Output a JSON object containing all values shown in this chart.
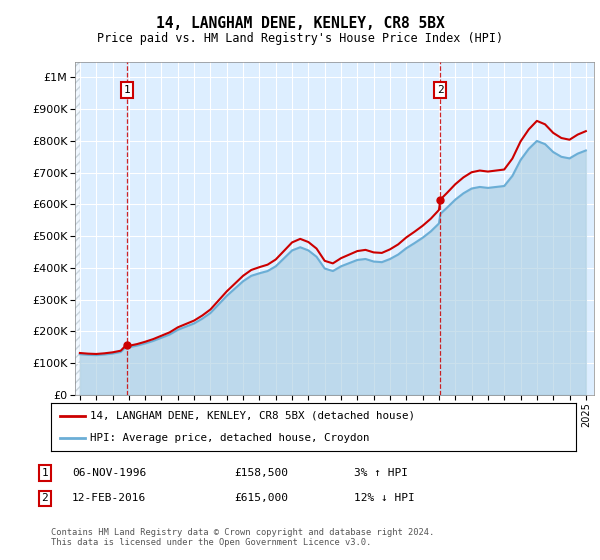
{
  "title": "14, LANGHAM DENE, KENLEY, CR8 5BX",
  "subtitle": "Price paid vs. HM Land Registry's House Price Index (HPI)",
  "ylim": [
    0,
    1050000
  ],
  "yticks": [
    0,
    100000,
    200000,
    300000,
    400000,
    500000,
    600000,
    700000,
    800000,
    900000,
    1000000
  ],
  "ytick_labels": [
    "£0",
    "£100K",
    "£200K",
    "£300K",
    "£400K",
    "£500K",
    "£600K",
    "£700K",
    "£800K",
    "£900K",
    "£1M"
  ],
  "hpi_color": "#a8cce0",
  "hpi_line_color": "#6baed6",
  "price_color": "#cc0000",
  "bg_color": "#ddeeff",
  "transaction1_year": 1996.875,
  "transaction1_price": 158500,
  "transaction2_year": 2016.083,
  "transaction2_price": 615000,
  "legend_line1": "14, LANGHAM DENE, KENLEY, CR8 5BX (detached house)",
  "legend_line2": "HPI: Average price, detached house, Croydon",
  "footer": "Contains HM Land Registry data © Crown copyright and database right 2024.\nThis data is licensed under the Open Government Licence v3.0.",
  "hpi_years": [
    1994.0,
    1994.5,
    1995.0,
    1995.5,
    1996.0,
    1996.5,
    1996.875,
    1997.0,
    1997.5,
    1998.0,
    1998.5,
    1999.0,
    1999.5,
    2000.0,
    2000.5,
    2001.0,
    2001.5,
    2002.0,
    2002.5,
    2003.0,
    2003.5,
    2004.0,
    2004.5,
    2005.0,
    2005.5,
    2006.0,
    2006.5,
    2007.0,
    2007.5,
    2008.0,
    2008.5,
    2009.0,
    2009.5,
    2010.0,
    2010.5,
    2011.0,
    2011.5,
    2012.0,
    2012.5,
    2013.0,
    2013.5,
    2014.0,
    2014.5,
    2015.0,
    2015.5,
    2016.0,
    2016.083,
    2016.5,
    2017.0,
    2017.5,
    2018.0,
    2018.5,
    2019.0,
    2019.5,
    2020.0,
    2020.5,
    2021.0,
    2021.5,
    2022.0,
    2022.5,
    2023.0,
    2023.5,
    2024.0,
    2024.5,
    2025.0
  ],
  "hpi_values": [
    128000,
    126000,
    125000,
    127000,
    130000,
    135000,
    154000,
    150000,
    155000,
    162000,
    170000,
    180000,
    190000,
    205000,
    215000,
    225000,
    240000,
    258000,
    285000,
    312000,
    335000,
    358000,
    375000,
    383000,
    390000,
    405000,
    430000,
    455000,
    465000,
    455000,
    435000,
    398000,
    390000,
    405000,
    415000,
    425000,
    428000,
    420000,
    418000,
    428000,
    442000,
    462000,
    478000,
    495000,
    515000,
    540000,
    570000,
    590000,
    615000,
    635000,
    650000,
    655000,
    652000,
    655000,
    658000,
    690000,
    740000,
    775000,
    800000,
    790000,
    765000,
    750000,
    745000,
    760000,
    770000
  ],
  "red_years": [
    1994.0,
    1994.5,
    1995.0,
    1995.5,
    1996.0,
    1996.5,
    1996.875,
    1997.0,
    1997.5,
    1998.0,
    1998.5,
    1999.0,
    1999.5,
    2000.0,
    2000.5,
    2001.0,
    2001.5,
    2002.0,
    2002.5,
    2003.0,
    2003.5,
    2004.0,
    2004.5,
    2005.0,
    2005.5,
    2006.0,
    2006.5,
    2007.0,
    2007.5,
    2008.0,
    2008.5,
    2009.0,
    2009.5,
    2010.0,
    2010.5,
    2011.0,
    2011.5,
    2012.0,
    2012.5,
    2013.0,
    2013.5,
    2014.0,
    2014.5,
    2015.0,
    2015.5,
    2016.0,
    2016.083,
    2016.5,
    2017.0,
    2017.5,
    2018.0,
    2018.5,
    2019.0,
    2019.5,
    2020.0,
    2020.5,
    2021.0,
    2021.5,
    2022.0,
    2022.5,
    2023.0,
    2023.5,
    2024.0,
    2024.5,
    2025.0
  ]
}
